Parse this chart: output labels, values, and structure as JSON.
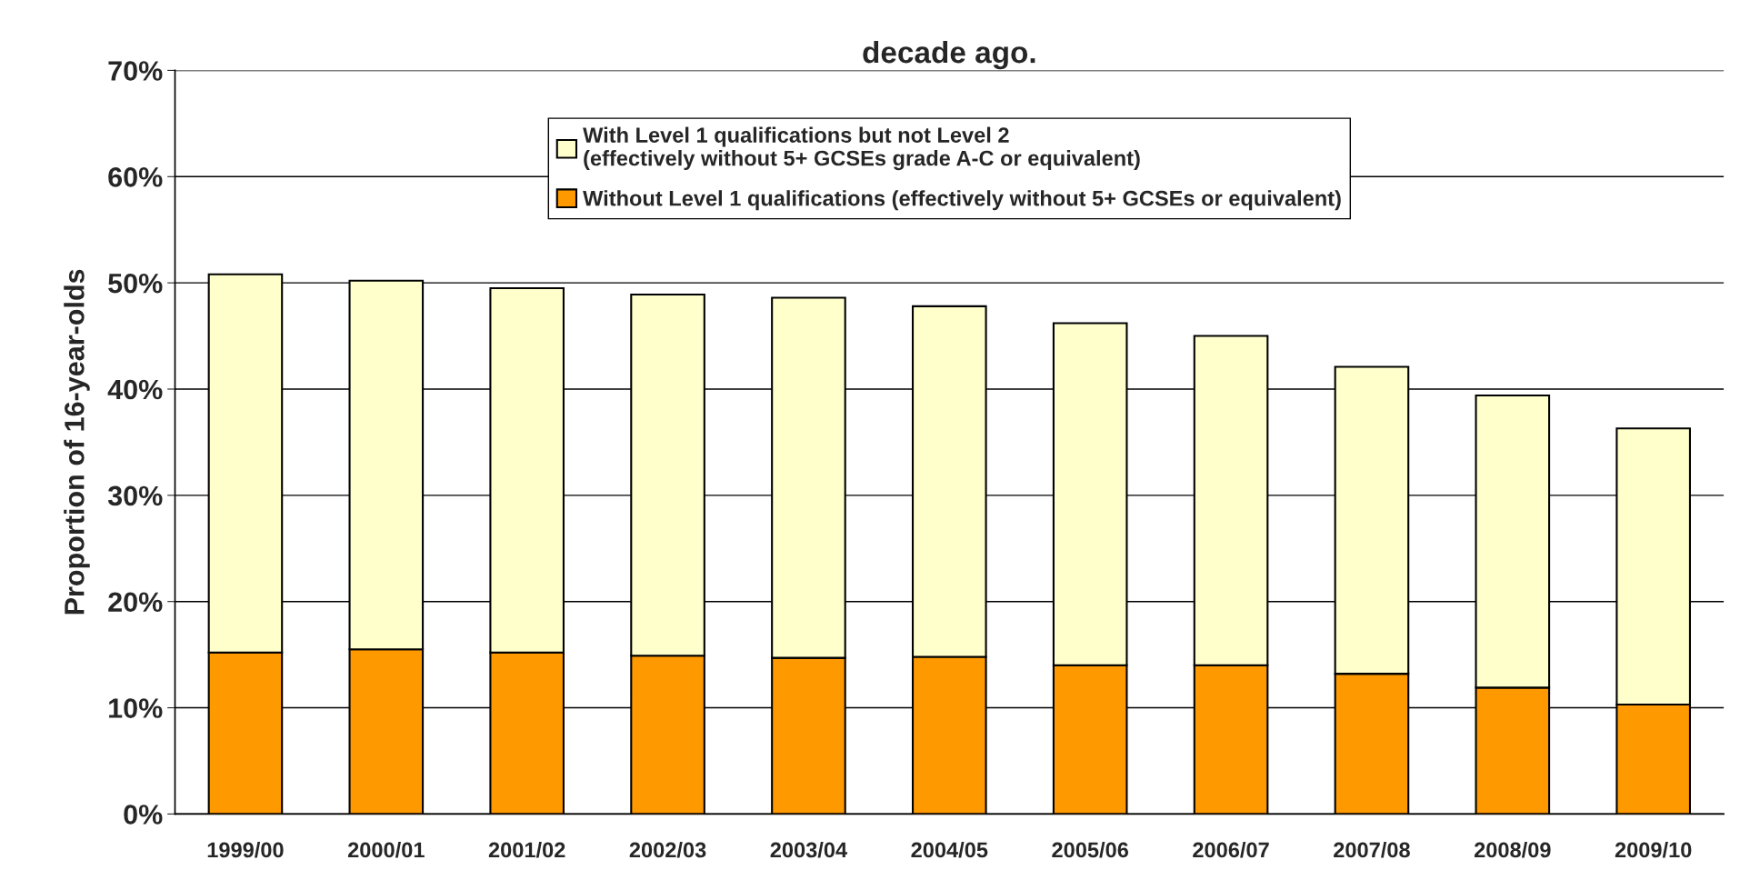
{
  "chart_data": {
    "type": "bar",
    "title": "decade ago.",
    "ylabel": "Proportion of 16-year-olds",
    "categories": [
      "1999/00",
      "2000/01",
      "2001/02",
      "2002/03",
      "2003/04",
      "2004/05",
      "2005/06",
      "2006/07",
      "2007/08",
      "2008/09",
      "2009/10"
    ],
    "stacked": true,
    "series": [
      {
        "name": "Without Level 1 qualifications (effectively without 5+ GCSEs or equivalent)",
        "color": "#ff9900",
        "values": [
          15.2,
          15.5,
          15.2,
          14.9,
          14.7,
          14.8,
          14.0,
          14.0,
          13.2,
          11.9,
          10.3
        ]
      },
      {
        "name": "With Level 1 qualifications but not Level 2\n(effectively without 5+ GCSEs grade A-C or equivalent)",
        "color": "#ffffcc",
        "values": [
          35.6,
          34.7,
          34.3,
          34.0,
          33.9,
          33.0,
          32.2,
          31.0,
          28.9,
          27.5,
          26.0
        ]
      }
    ],
    "ylim": [
      0,
      70
    ],
    "yticks": [
      {
        "value": 0,
        "label": "0%"
      },
      {
        "value": 10,
        "label": "10%"
      },
      {
        "value": 20,
        "label": "20%"
      },
      {
        "value": 30,
        "label": "30%"
      },
      {
        "value": 40,
        "label": "40%"
      },
      {
        "value": 50,
        "label": "50%"
      },
      {
        "value": 60,
        "label": "60%"
      },
      {
        "value": 70,
        "label": "70%"
      }
    ],
    "grid": "y",
    "legend": "top"
  }
}
